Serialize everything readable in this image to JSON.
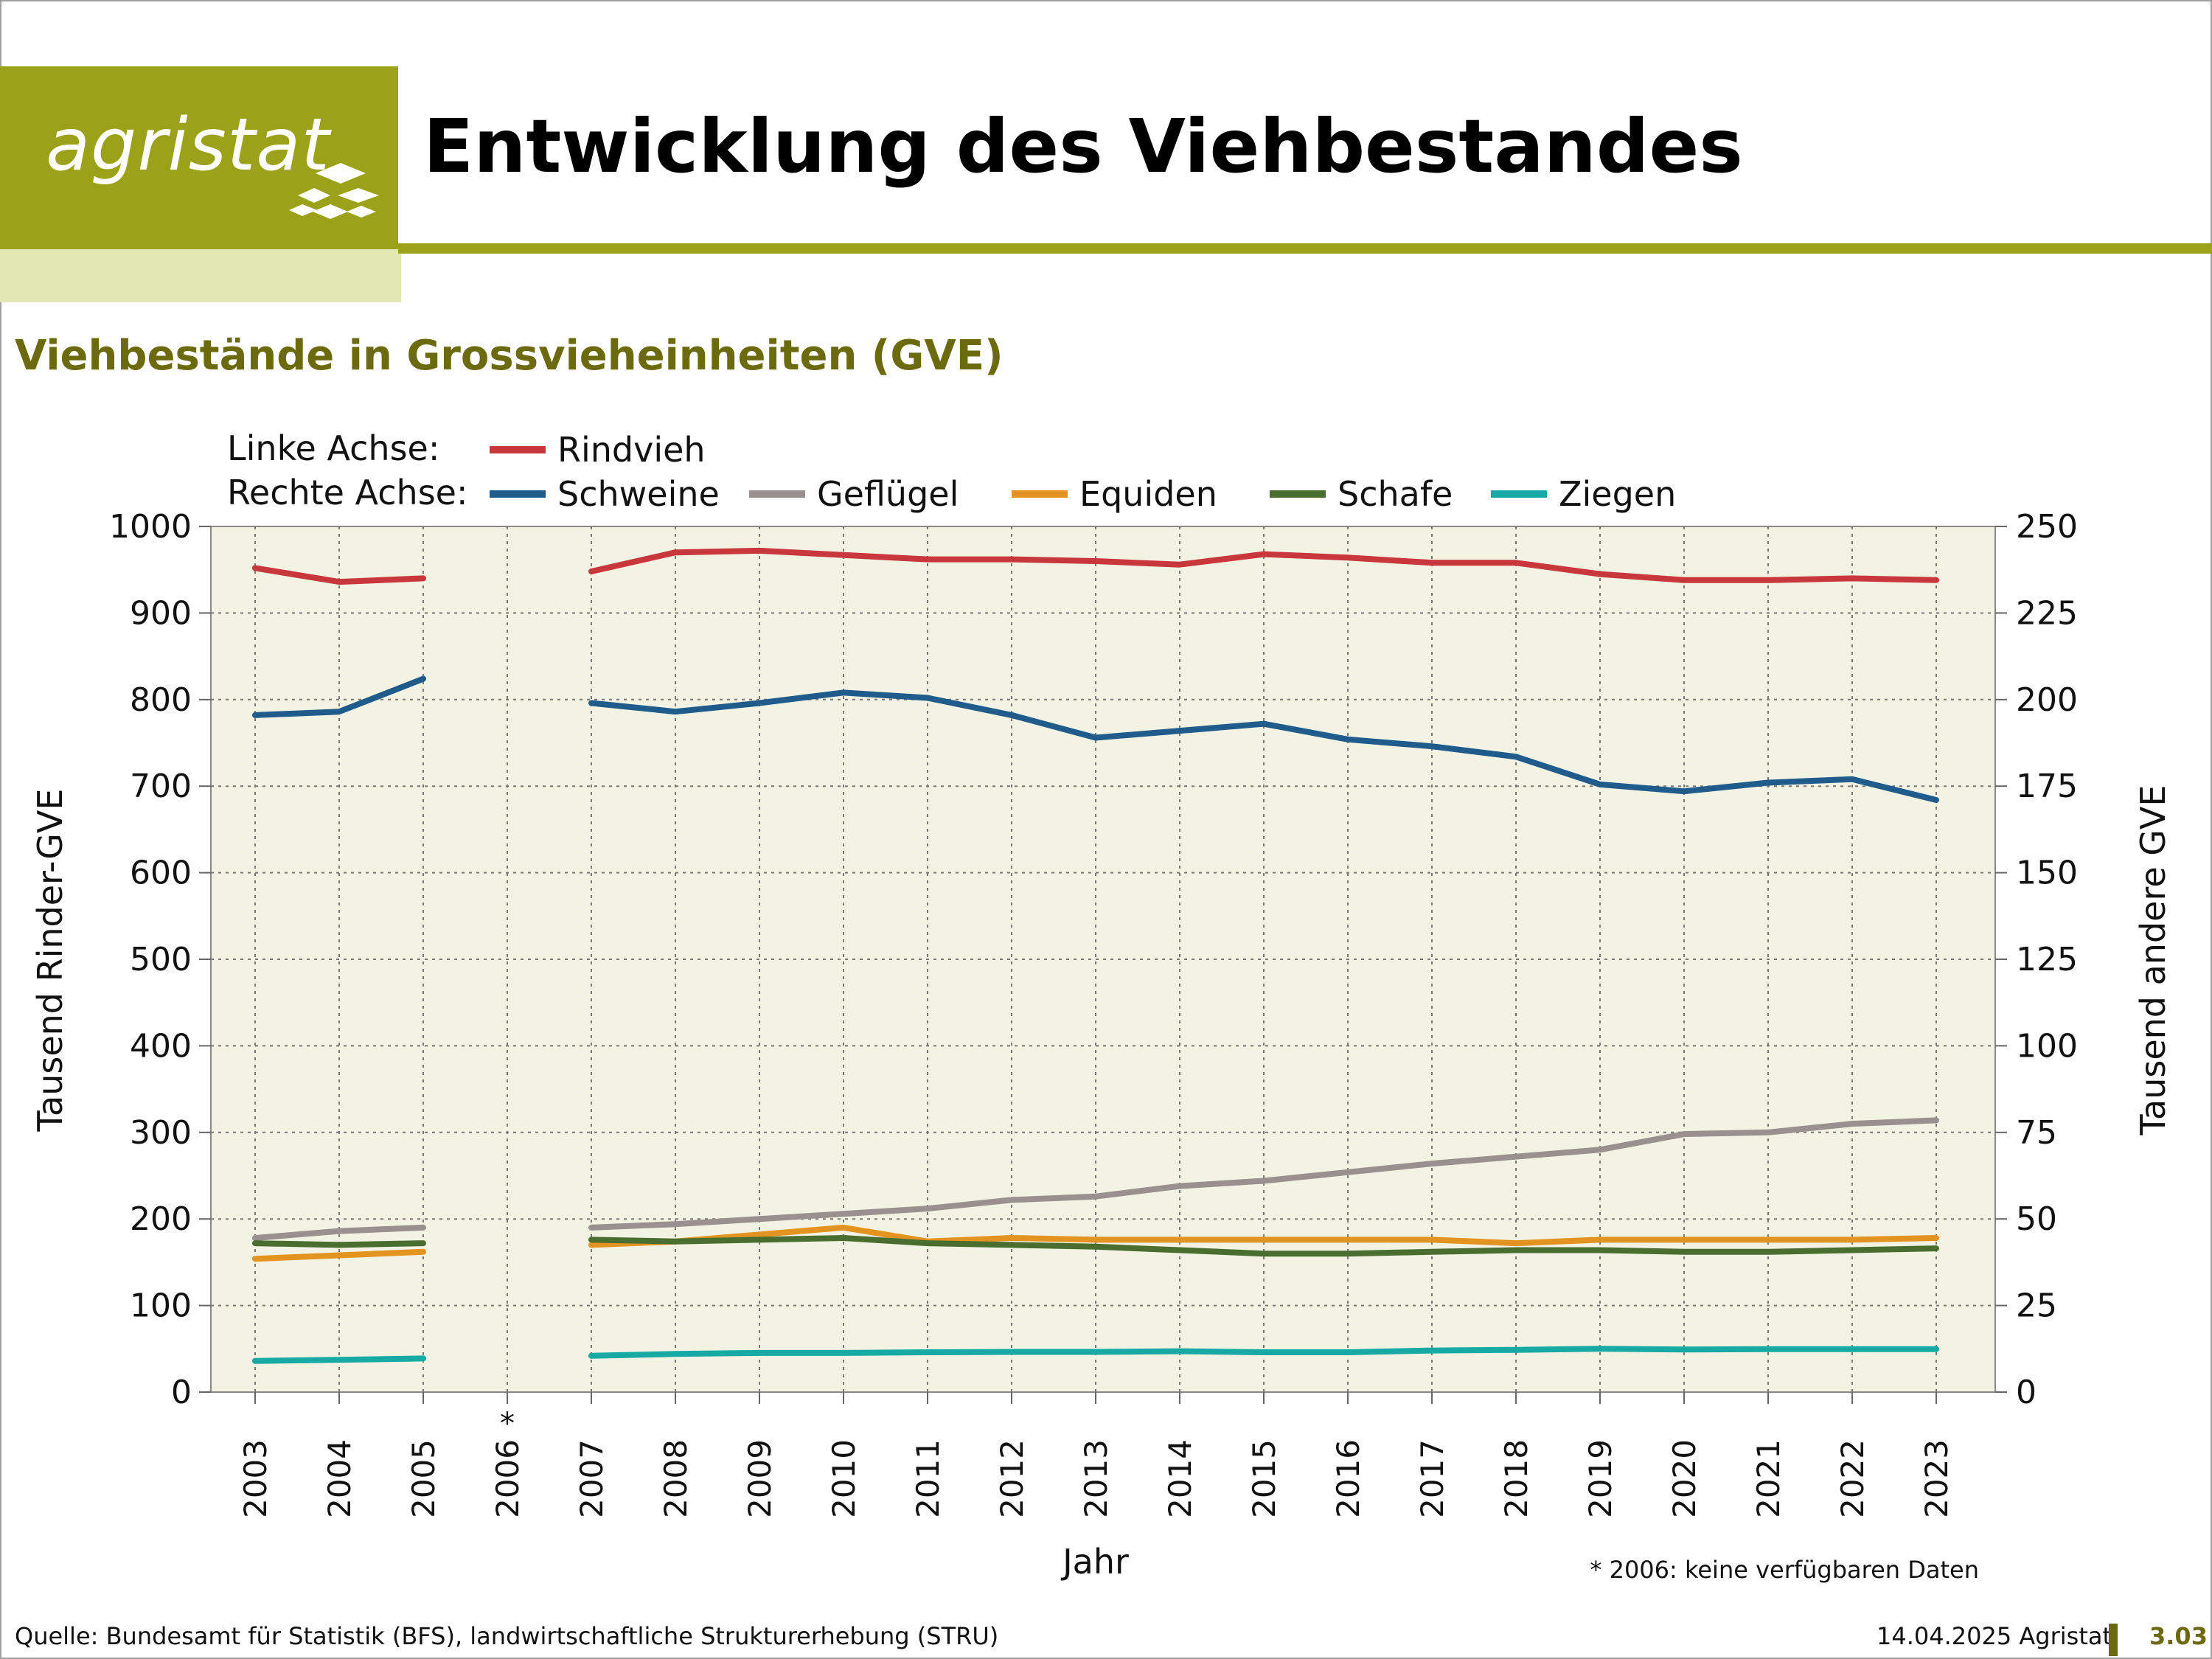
{
  "header": {
    "logo_text": "agristat",
    "title": "Entwicklung des Viehbestandes"
  },
  "subtitle": "Viehbestände in Grossvieheinheiten (GVE)",
  "footer": {
    "source": "Quelle: Bundesamt für Statistik (BFS), landwirtschaftliche Strukturerhebung (STRU)",
    "date_org": "14.04.2025 Agristat",
    "page": "3.03"
  },
  "colors": {
    "brand": "#9ba21a",
    "plot_bg": "#f3f3e3",
    "Rindvieh": "#c8373c",
    "Schweine": "#1f5c8c",
    "Geflügel": "#9b9090",
    "Equiden": "#e39320",
    "Schafe": "#4a6e2f",
    "Ziegen": "#17a9a3"
  },
  "chart_data": {
    "type": "line",
    "legend_left_label": "Linke Achse:",
    "legend_right_label": "Rechte Achse:",
    "xlabel": "Jahr",
    "ylabel_left": "Tausend Rinder-GVE",
    "ylabel_right": "Tausend andere GVE",
    "ylim_left": [
      0,
      1000
    ],
    "ylim_right": [
      0,
      250
    ],
    "yticks_left": [
      "0",
      "100",
      "200",
      "300",
      "400",
      "500",
      "600",
      "700",
      "800",
      "900",
      "1000"
    ],
    "yticks_right": [
      "0",
      "25",
      "50",
      "75",
      "100",
      "125",
      "150",
      "175",
      "200",
      "225",
      "250"
    ],
    "categories": [
      "2003",
      "2004",
      "2005",
      "2006",
      "2007",
      "2008",
      "2009",
      "2010",
      "2011",
      "2012",
      "2013",
      "2014",
      "2015",
      "2016",
      "2017",
      "2018",
      "2019",
      "2020",
      "2021",
      "2022",
      "2023"
    ],
    "missing_marker": "*",
    "note": "* 2006: keine verfügbaren Daten",
    "grid": true,
    "series": [
      {
        "name": "Rindvieh",
        "axis": "left",
        "values": [
          952,
          936,
          940,
          null,
          948,
          970,
          972,
          967,
          962,
          962,
          960,
          956,
          968,
          964,
          958,
          958,
          945,
          938,
          938,
          940,
          938
        ]
      },
      {
        "name": "Schweine",
        "axis": "right",
        "values": [
          195.5,
          196.5,
          206,
          null,
          199,
          196.5,
          199,
          202,
          200.5,
          195.5,
          189,
          191,
          193,
          188.5,
          186.5,
          183.5,
          175.5,
          173.5,
          176,
          177,
          171
        ]
      },
      {
        "name": "Geflügel",
        "axis": "right",
        "values": [
          44.5,
          46.5,
          47.5,
          null,
          47.5,
          48.5,
          50,
          51.5,
          53,
          55.5,
          56.5,
          59.5,
          61,
          63.5,
          66,
          68,
          70,
          74.5,
          75,
          77.5,
          78.5
        ]
      },
      {
        "name": "Equiden",
        "axis": "right",
        "values": [
          38.5,
          39.5,
          40.5,
          null,
          42.5,
          43.5,
          45.5,
          47.5,
          43.5,
          44.5,
          44,
          44,
          44,
          44,
          44,
          43,
          44,
          44,
          44,
          44,
          44.5
        ]
      },
      {
        "name": "Schafe",
        "axis": "right",
        "values": [
          43,
          42.5,
          43,
          null,
          44,
          43.5,
          44,
          44.5,
          43,
          42.5,
          42,
          41,
          40,
          40,
          40.5,
          41,
          41,
          40.5,
          40.5,
          41,
          41.5
        ]
      },
      {
        "name": "Ziegen",
        "axis": "right",
        "values": [
          9,
          9.3,
          9.7,
          null,
          10.5,
          11,
          11.3,
          11.3,
          11.5,
          11.6,
          11.6,
          11.8,
          11.5,
          11.5,
          12,
          12.2,
          12.5,
          12.3,
          12.4,
          12.4,
          12.4
        ]
      }
    ]
  }
}
